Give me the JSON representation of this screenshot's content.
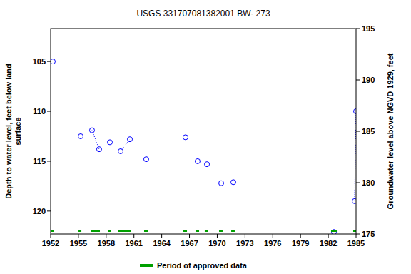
{
  "chart_data": {
    "type": "scatter",
    "title": "USGS 331707081382001 BW- 273",
    "ylabel": [
      "Depth to water level, feet below land",
      "surface"
    ],
    "y2label": "Groundwater level above NGVD 1929, feet",
    "xlim": [
      1952,
      1985
    ],
    "xticks": [
      1952,
      1955,
      1958,
      1961,
      1964,
      1967,
      1970,
      1973,
      1976,
      1979,
      1982,
      1985
    ],
    "ylim": [
      122.3,
      101.7
    ],
    "yticks": [
      105,
      110,
      115,
      120
    ],
    "y2lim": [
      175,
      195
    ],
    "y2ticks": [
      175,
      180,
      185,
      190,
      195
    ],
    "grid": false,
    "legend": "bottom",
    "series": [
      {
        "type": "scatter",
        "marker": "circle",
        "color": "#0000ff",
        "x": [
          1952.23,
          1955.24,
          1956.47,
          1957.24,
          1958.4,
          1959.56,
          1960.56,
          1962.33,
          1966.57,
          1967.88,
          1968.89,
          1970.43,
          1971.74,
          1982.61,
          1984.84,
          1985.0
        ],
        "values": [
          105.0,
          112.5,
          111.9,
          113.8,
          113.1,
          114.0,
          112.8,
          114.8,
          112.6,
          115.0,
          115.3,
          117.2,
          117.1,
          122.1,
          119.0,
          110.0
        ]
      },
      {
        "type": "line",
        "line_style": "dotted",
        "color": "#0000ff",
        "x": [
          1956.47,
          1957.24,
          null,
          1959.56,
          1960.56,
          null,
          1984.84,
          1985.0
        ],
        "values": [
          111.9,
          113.8,
          null,
          114.0,
          112.8,
          null,
          119.0,
          110.0
        ]
      },
      {
        "type": "period",
        "name": "Period of approved data",
        "color": "#00a000",
        "start": [
          1952.0,
          1955.01,
          1956.32,
          1958.17,
          1959.32,
          1962.1,
          1966.34,
          1967.65,
          1968.65,
          1970.2,
          1971.51,
          1982.3,
          1984.69
        ],
        "end": [
          1952.31,
          1955.32,
          1957.32,
          1958.55,
          1960.71,
          1962.49,
          1966.73,
          1968.04,
          1969.04,
          1970.58,
          1971.89,
          1982.92,
          1985.0
        ]
      }
    ]
  }
}
